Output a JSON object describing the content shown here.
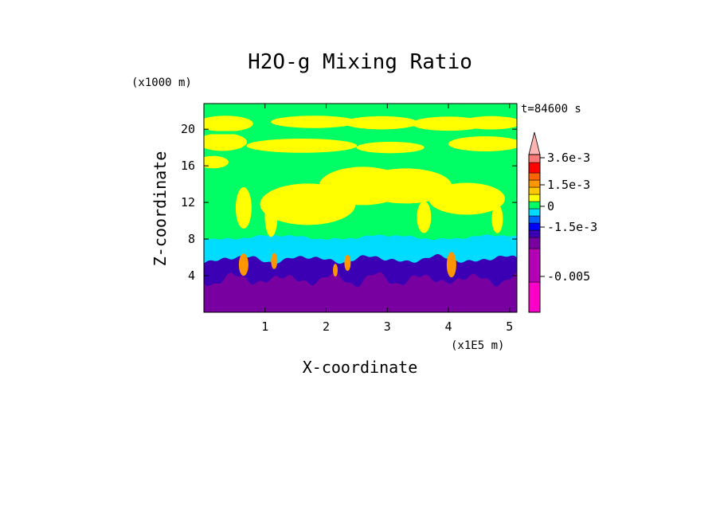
{
  "chart_data": {
    "type": "heatmap",
    "title": "H2O-g Mixing Ratio",
    "xlabel": "X-coordinate",
    "ylabel": "Z-coordinate",
    "x_unit": "(x1E5 m)",
    "y_unit": "(x1000 m)",
    "time_label": "t=84600 s",
    "xlim": [
      0,
      5.12
    ],
    "ylim": [
      0,
      22.8
    ],
    "x_ticks": [
      "1",
      "2",
      "3",
      "4",
      "5"
    ],
    "x_tick_values": [
      1,
      2,
      3,
      4,
      5
    ],
    "y_ticks": [
      "4",
      "8",
      "12",
      "16",
      "20"
    ],
    "y_tick_values": [
      4,
      8,
      12,
      16,
      20
    ],
    "colorbar": {
      "labels": [
        "3.6e-3",
        "1.5e-3",
        "0",
        "-1.5e-3",
        "-0.005"
      ],
      "colors": [
        "#ff00c8",
        "#b400b4",
        "#7800a0",
        "#3c00b4",
        "#0000ff",
        "#0064ff",
        "#00dcff",
        "#00ff64",
        "#ffff00",
        "#ffc800",
        "#ff9600",
        "#ff6400",
        "#ff0000",
        "#ff7878",
        "#ffb4b4"
      ]
    },
    "layers": [
      {
        "name": "base",
        "color": "#00ff64"
      },
      {
        "name": "purple",
        "color": "#7800a0"
      },
      {
        "name": "blue",
        "color": "#3c00b4"
      },
      {
        "name": "cyan",
        "color": "#00dcff"
      },
      {
        "name": "yellow",
        "color": "#ffff00"
      },
      {
        "name": "orange",
        "color": "#ff9600"
      }
    ]
  }
}
